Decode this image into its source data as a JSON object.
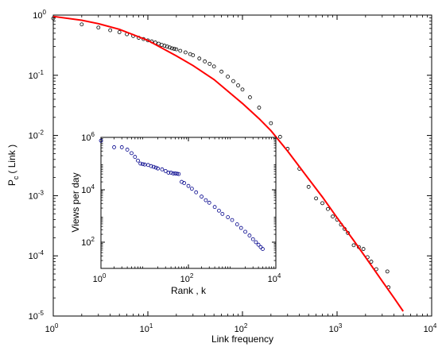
{
  "chart_data": [
    {
      "type": "scatter",
      "xlabel": "Link frequency",
      "ylabel": "P",
      "ylabel_sub": "c",
      "ylabel_tail": "( Link )",
      "xscale": "log",
      "yscale": "log",
      "xlim": [
        1,
        10000
      ],
      "ylim": [
        1e-05,
        1
      ],
      "xticks": [
        {
          "v": 1,
          "label": "10",
          "exp": "0"
        },
        {
          "v": 10,
          "label": "10",
          "exp": "1"
        },
        {
          "v": 100,
          "label": "10",
          "exp": "2"
        },
        {
          "v": 1000,
          "label": "10",
          "exp": "3"
        },
        {
          "v": 10000,
          "label": "10",
          "exp": "4"
        }
      ],
      "yticks": [
        {
          "v": 1e-05,
          "label": "10",
          "exp": "-5"
        },
        {
          "v": 0.0001,
          "label": "10",
          "exp": "-4"
        },
        {
          "v": 0.001,
          "label": "10",
          "exp": "-3"
        },
        {
          "v": 0.01,
          "label": "10",
          "exp": "-2"
        },
        {
          "v": 0.1,
          "label": "10",
          "exp": "-1"
        },
        {
          "v": 1,
          "label": "10",
          "exp": "0"
        }
      ],
      "grid": false,
      "series": [
        {
          "kind": "markers",
          "marker": "open-circle",
          "color": "#000000",
          "x": [
            1,
            2,
            3,
            4,
            5,
            6,
            7,
            8,
            9,
            10,
            11,
            12,
            13,
            14,
            15,
            16,
            17,
            18,
            19,
            20,
            22,
            25,
            28,
            30,
            35,
            40,
            45,
            50,
            60,
            70,
            80,
            90,
            100,
            120,
            150,
            200,
            250,
            300,
            400,
            500,
            600,
            700,
            800,
            900,
            1000,
            1100,
            1200,
            1300,
            1500,
            1700,
            1900,
            2100,
            2300,
            2600,
            3400,
            3500
          ],
          "y": [
            0.88,
            0.7,
            0.62,
            0.56,
            0.52,
            0.48,
            0.45,
            0.42,
            0.4,
            0.38,
            0.365,
            0.35,
            0.335,
            0.32,
            0.31,
            0.3,
            0.29,
            0.28,
            0.275,
            0.27,
            0.255,
            0.24,
            0.225,
            0.215,
            0.19,
            0.17,
            0.155,
            0.14,
            0.115,
            0.095,
            0.08,
            0.068,
            0.058,
            0.043,
            0.029,
            0.016,
            0.0095,
            0.006,
            0.0028,
            0.0014,
            0.0009,
            0.00075,
            0.0006,
            0.00045,
            0.0004,
            0.00033,
            0.00028,
            0.00024,
            0.00015,
            0.00014,
            0.00013,
            9.5e-05,
            8e-05,
            6e-05,
            5.5e-05,
            3e-05
          ]
        },
        {
          "kind": "line",
          "color": "#ff0000",
          "x": [
            1,
            2,
            3,
            5,
            10,
            20,
            30,
            50,
            100,
            150,
            200,
            300,
            500,
            700,
            1000,
            1500,
            2000,
            3000,
            4000,
            5000
          ],
          "y": [
            0.95,
            0.82,
            0.72,
            0.58,
            0.38,
            0.21,
            0.145,
            0.085,
            0.034,
            0.019,
            0.012,
            0.0055,
            0.0019,
            0.00095,
            0.00043,
            0.00018,
            9.5e-05,
            3.8e-05,
            2e-05,
            1.2e-05
          ]
        }
      ]
    },
    {
      "type": "scatter",
      "inset": true,
      "xlabel": "Rank , k",
      "ylabel": "Views per day",
      "xscale": "log",
      "yscale": "log",
      "xlim": [
        1,
        10000
      ],
      "ylim": [
        10,
        1000000
      ],
      "xticks": [
        {
          "v": 1,
          "label": "10",
          "exp": "0"
        },
        {
          "v": 100,
          "label": "10",
          "exp": "2"
        },
        {
          "v": 10000,
          "label": "10",
          "exp": "4"
        }
      ],
      "yticks": [
        {
          "v": 100,
          "label": "10",
          "exp": "2"
        },
        {
          "v": 10000,
          "label": "10",
          "exp": "4"
        },
        {
          "v": 1000000,
          "label": "10",
          "exp": "6"
        }
      ],
      "grid": false,
      "series": [
        {
          "kind": "markers",
          "marker": "open-circle",
          "color": "#00008b",
          "x": [
            1,
            2,
            3,
            4,
            5,
            6,
            7,
            8,
            9,
            10,
            12,
            14,
            16,
            18,
            20,
            25,
            30,
            35,
            40,
            45,
            50,
            55,
            60,
            70,
            80,
            100,
            120,
            150,
            200,
            250,
            300,
            400,
            500,
            600,
            800,
            1000,
            1300,
            1600,
            2000,
            2500,
            3000,
            3500,
            4000,
            4500,
            5000
          ],
          "y": [
            750000,
            420000,
            420000,
            340000,
            250000,
            180000,
            130000,
            100000,
            95000,
            92000,
            88000,
            80000,
            75000,
            70000,
            65000,
            60000,
            52000,
            45000,
            45000,
            42000,
            42000,
            41000,
            40000,
            20000,
            18000,
            14000,
            11000,
            8000,
            5500,
            4000,
            3200,
            2200,
            1600,
            1200,
            900,
            700,
            480,
            350,
            250,
            180,
            130,
            100,
            80,
            65,
            55
          ]
        }
      ]
    }
  ]
}
